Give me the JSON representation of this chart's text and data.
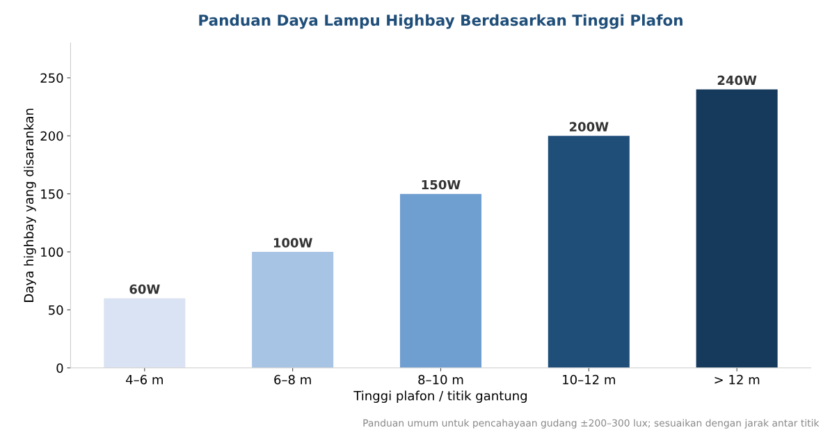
{
  "chart_data": {
    "type": "bar",
    "title": "Panduan Daya Lampu Highbay Berdasarkan Tinggi Plafon",
    "xlabel": "Tinggi plafon / titik gantung",
    "ylabel": "Daya highbay yang disarankan",
    "categories": [
      "4–6 m",
      "6–8 m",
      "8–10 m",
      "10–12 m",
      "> 12 m"
    ],
    "values": [
      60,
      100,
      150,
      200,
      240
    ],
    "colors": [
      "#dae3f3",
      "#a7c4e4",
      "#6f9ed1",
      "#1f4e79",
      "#163a5c"
    ],
    "value_labels": [
      "60W",
      "100W",
      "150W",
      "200W",
      "240W"
    ],
    "ylim": [
      0,
      280
    ],
    "yticks": [
      0,
      50,
      100,
      150,
      200,
      250
    ],
    "grid": false,
    "annotations": [
      "Panduan umum untuk pencahayaan gudang ±200–300 lux; sesuaikan dengan jarak antar titik"
    ]
  }
}
